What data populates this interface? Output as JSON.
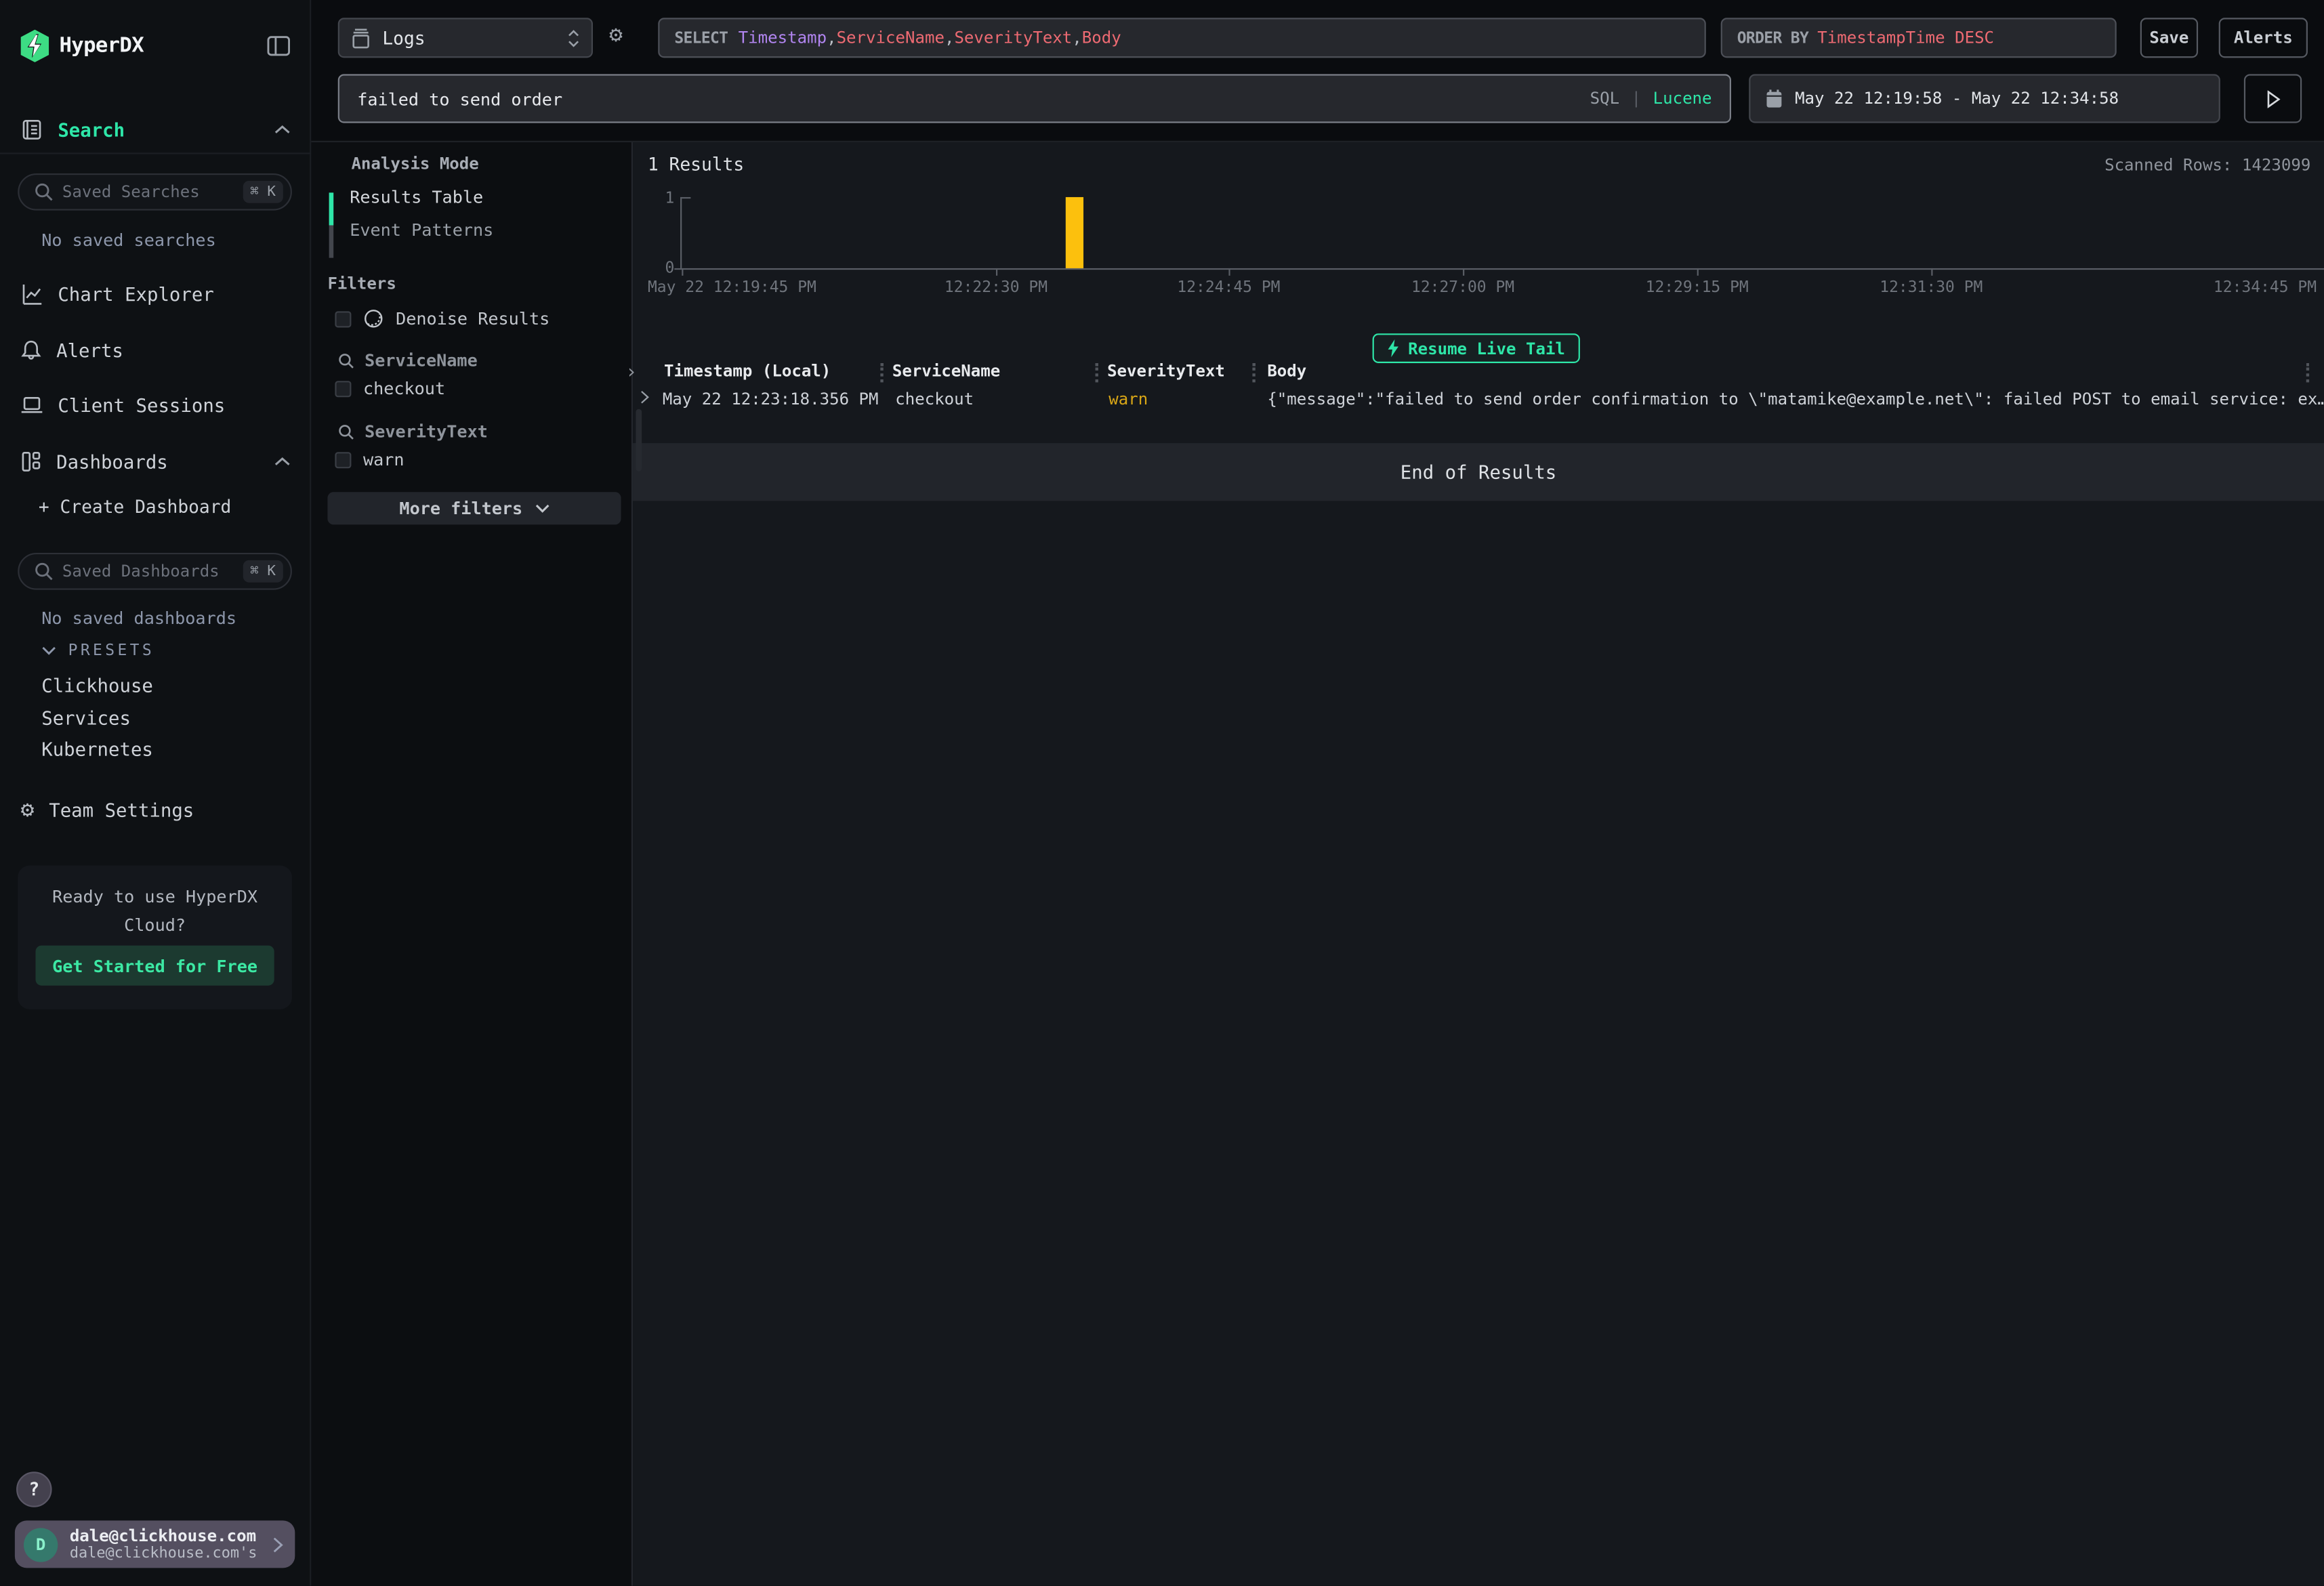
{
  "brand": {
    "name": "HyperDX"
  },
  "topbar": {
    "source": {
      "label": "Logs"
    },
    "select": {
      "keyword": "SELECT",
      "separator": ", ",
      "fields": [
        {
          "text": "Timestamp",
          "color": "#b185f0"
        },
        {
          "text": "ServiceName",
          "color": "#ed6a72"
        },
        {
          "text": "SeverityText",
          "color": "#ed6a72"
        },
        {
          "text": "Body",
          "color": "#ed6a72"
        }
      ]
    },
    "order_by": {
      "keyword": "ORDER BY",
      "value": "TimestampTime DESC"
    },
    "save": "Save",
    "alerts": "Alerts",
    "query": "failed to send order",
    "lang": {
      "sql": "SQL",
      "divider": "|",
      "lucene": "Lucene"
    },
    "time_range": "May 22 12:19:58 - May 22 12:34:58"
  },
  "sidebar": {
    "search_label": "Search",
    "saved_searches": {
      "placeholder": "Saved Searches",
      "shortcut": "⌘ K"
    },
    "no_saved_searches": "No saved searches",
    "nav": [
      {
        "label": "Chart Explorer"
      },
      {
        "label": "Alerts"
      },
      {
        "label": "Client Sessions"
      },
      {
        "label": "Dashboards"
      }
    ],
    "create_dashboard": "+ Create Dashboard",
    "saved_dashboards": {
      "placeholder": "Saved Dashboards",
      "shortcut": "⌘ K"
    },
    "no_saved_dashboards": "No saved dashboards",
    "presets_label": "PRESETS",
    "presets": [
      {
        "label": "Clickhouse"
      },
      {
        "label": "Services"
      },
      {
        "label": "Kubernetes"
      }
    ],
    "team_settings": "Team Settings",
    "cloud_card": {
      "line1": "Ready to use HyperDX",
      "line2": "Cloud?",
      "cta": "Get Started for Free"
    },
    "help": "?",
    "user": {
      "initial": "D",
      "email": "dale@clickhouse.com",
      "team": "dale@clickhouse.com's"
    }
  },
  "filter_panel": {
    "analysis_mode_label": "Analysis Mode",
    "modes": [
      {
        "label": "Results Table",
        "active": true
      },
      {
        "label": "Event Patterns",
        "active": false
      }
    ],
    "filters_label": "Filters",
    "denoise_label": "Denoise Results",
    "groups": [
      {
        "name": "ServiceName",
        "options": [
          {
            "label": "checkout",
            "checked": false
          }
        ]
      },
      {
        "name": "SeverityText",
        "options": [
          {
            "label": "warn",
            "checked": false
          }
        ]
      }
    ],
    "more_filters": "More filters"
  },
  "results": {
    "count": "1 Results",
    "scanned_rows": "Scanned Rows: 1423099",
    "live_tail": "Resume Live Tail",
    "table": {
      "columns": [
        {
          "label": "Timestamp (Local)"
        },
        {
          "label": "ServiceName"
        },
        {
          "label": "SeverityText"
        },
        {
          "label": "Body"
        }
      ],
      "rows": [
        {
          "timestamp": "May 22 12:23:18.356 PM",
          "service": "checkout",
          "severity": "warn",
          "body": "{\"message\":\"failed to send order confirmation to \\\"matamike@example.net\\\": failed POST to email service: ex…"
        }
      ]
    },
    "end_of_results": "End of Results"
  },
  "chart_data": {
    "type": "bar",
    "title": "Results histogram",
    "x_ticks": [
      "May 22 12:19:45 PM",
      "12:22:30 PM",
      "12:24:45 PM",
      "12:27:00 PM",
      "12:29:15 PM",
      "12:31:30 PM",
      "12:34:45 PM"
    ],
    "y_ticks": [
      "1",
      "0"
    ],
    "ylim": [
      0,
      1
    ],
    "xlabel": "",
    "ylabel": "",
    "grid": false,
    "legend": false,
    "bars": [
      {
        "time_bucket": "12:23 PM",
        "count": 1
      }
    ],
    "bar_color": "#fcc00d"
  },
  "colors": {
    "accent": "#2ee6a8",
    "logo_green": "#3ddc84",
    "violet": "#b185f0",
    "salmon": "#ed6a72",
    "warn": "#d9a616",
    "bar": "#fcc00d"
  }
}
